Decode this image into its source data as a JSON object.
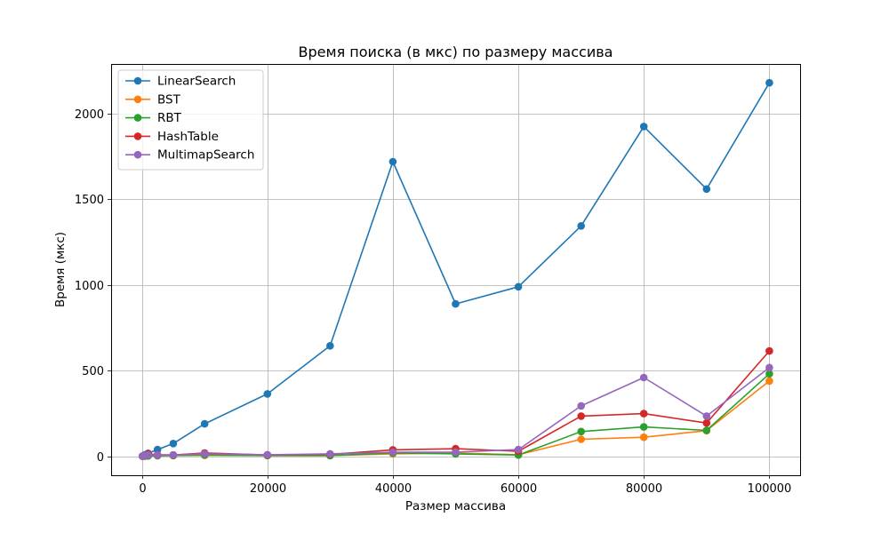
{
  "chart_data": {
    "type": "line",
    "title": "Время поиска (в мкс) по размеру массива",
    "xlabel": "Размер массива",
    "ylabel": "Время (мкс)",
    "x": [
      100,
      500,
      1000,
      2500,
      5000,
      10000,
      20000,
      30000,
      40000,
      50000,
      60000,
      70000,
      80000,
      90000,
      100000
    ],
    "xlim": [
      -4900,
      104900
    ],
    "ylim": [
      -110,
      2290
    ],
    "xticks": [
      0,
      20000,
      40000,
      60000,
      80000,
      100000
    ],
    "yticks": [
      0,
      500,
      1000,
      1500,
      2000
    ],
    "grid": true,
    "legend_position": "top-left",
    "series": [
      {
        "name": "LinearSearch",
        "color": "#1f77b4",
        "values": [
          2,
          10,
          18,
          40,
          75,
          190,
          365,
          645,
          1720,
          890,
          990,
          1345,
          1925,
          1560,
          2180
        ]
      },
      {
        "name": "BST",
        "color": "#ff7f0e",
        "values": [
          1,
          2,
          3,
          4,
          5,
          6,
          5,
          5,
          15,
          20,
          10,
          100,
          112,
          150,
          440
        ]
      },
      {
        "name": "RBT",
        "color": "#2ca02c",
        "values": [
          1,
          2,
          3,
          4,
          5,
          8,
          5,
          5,
          20,
          15,
          8,
          145,
          172,
          152,
          482
        ]
      },
      {
        "name": "HashTable",
        "color": "#d62728",
        "values": [
          2,
          5,
          15,
          10,
          8,
          20,
          8,
          12,
          38,
          45,
          30,
          235,
          250,
          195,
          615
        ]
      },
      {
        "name": "MultimapSearch",
        "color": "#9467bd",
        "values": [
          2,
          5,
          8,
          8,
          8,
          15,
          10,
          15,
          25,
          25,
          40,
          295,
          460,
          235,
          518
        ]
      }
    ]
  }
}
